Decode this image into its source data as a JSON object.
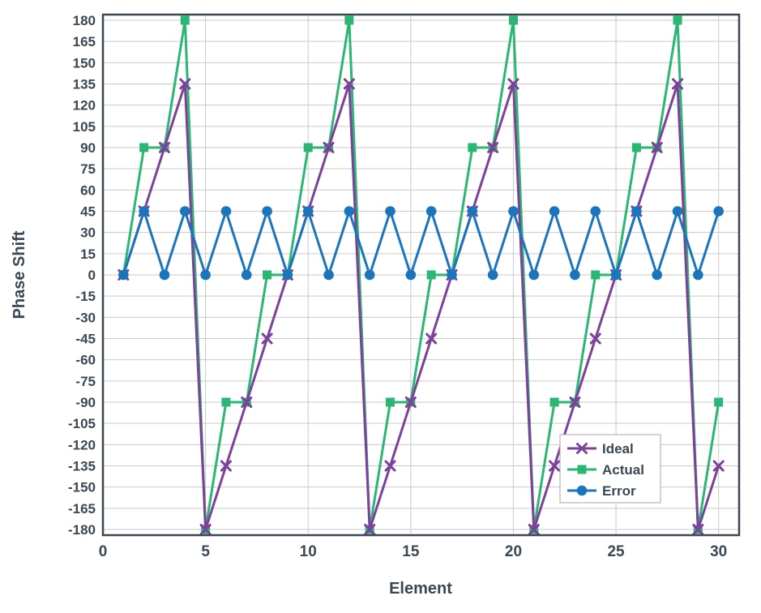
{
  "chart_data": {
    "type": "line",
    "title": "",
    "xlabel": "Element",
    "ylabel": "Phase Shift",
    "x": [
      1,
      2,
      3,
      4,
      5,
      6,
      7,
      8,
      9,
      10,
      11,
      12,
      13,
      14,
      15,
      16,
      17,
      18,
      19,
      20,
      21,
      22,
      23,
      24,
      25,
      26,
      27,
      28,
      29,
      30
    ],
    "series": [
      {
        "name": "Ideal",
        "color": "#7c4199",
        "marker": "x",
        "values": [
          0,
          45,
          90,
          135,
          -180,
          -135,
          -90,
          -45,
          0,
          45,
          90,
          135,
          -180,
          -135,
          -90,
          -45,
          0,
          45,
          90,
          135,
          -180,
          -135,
          -90,
          -45,
          0,
          45,
          90,
          135,
          -180,
          -135
        ]
      },
      {
        "name": "Actual",
        "color": "#2bb673",
        "marker": "square",
        "values": [
          0,
          90,
          90,
          180,
          -180,
          -90,
          -90,
          0,
          0,
          90,
          90,
          180,
          -180,
          -90,
          -90,
          0,
          0,
          90,
          90,
          180,
          -180,
          -90,
          -90,
          0,
          0,
          90,
          90,
          180,
          -180,
          -90
        ]
      },
      {
        "name": "Error",
        "color": "#1b75bc",
        "marker": "circle",
        "values": [
          0,
          45,
          0,
          45,
          0,
          45,
          0,
          45,
          0,
          45,
          0,
          45,
          0,
          45,
          0,
          45,
          0,
          45,
          0,
          45,
          0,
          45,
          0,
          45,
          0,
          45,
          0,
          45,
          0,
          45
        ]
      }
    ],
    "xticks": [
      0,
      5,
      10,
      15,
      20,
      25,
      30
    ],
    "yticks": [
      180,
      165,
      150,
      135,
      120,
      105,
      90,
      75,
      60,
      45,
      30,
      15,
      0,
      -15,
      -30,
      -45,
      -60,
      -75,
      -90,
      -105,
      -120,
      -135,
      -150,
      -165,
      -180
    ],
    "xlim": [
      0,
      31
    ],
    "ylim": [
      -184,
      184
    ],
    "grid": true,
    "legend_position": "right-lower",
    "legend_order": [
      "Ideal",
      "Actual",
      "Error"
    ]
  },
  "styles": {
    "text_color": "#3b4753",
    "grid_color": "#c9c9c9",
    "frame_color": "#3b4753",
    "background": "#ffffff"
  }
}
